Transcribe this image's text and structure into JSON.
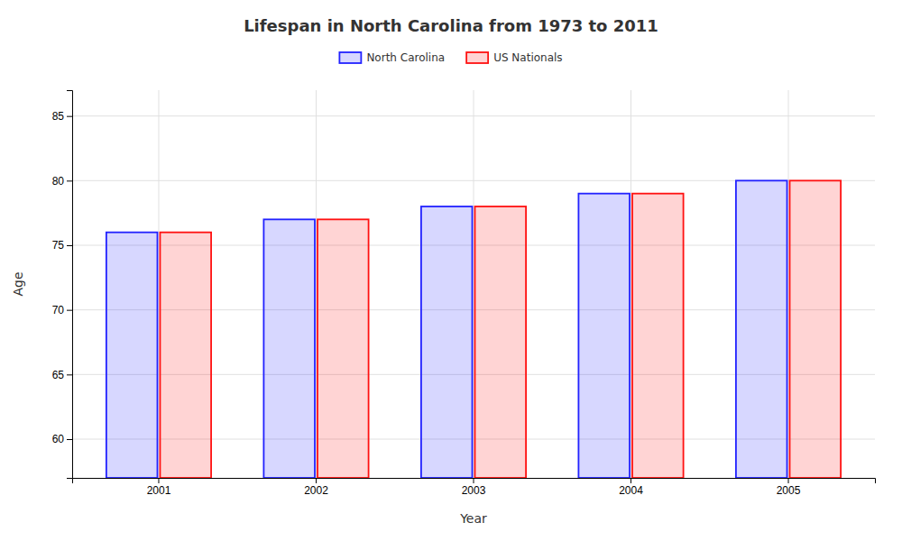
{
  "chart_data": {
    "type": "bar",
    "title": "Lifespan in North Carolina from 1973 to 2011",
    "xlabel": "Year",
    "ylabel": "Age",
    "categories": [
      "2001",
      "2002",
      "2003",
      "2004",
      "2005"
    ],
    "series": [
      {
        "name": "North Carolina",
        "color": "#2222ff",
        "values": [
          76,
          77,
          78,
          79,
          80
        ]
      },
      {
        "name": "US Nationals",
        "color": "#ff1111",
        "values": [
          76,
          77,
          78,
          79,
          80
        ]
      }
    ],
    "ylim": [
      57,
      87
    ],
    "yticks": [
      60,
      65,
      70,
      75,
      80,
      85
    ],
    "grid": true,
    "legend": "top"
  }
}
